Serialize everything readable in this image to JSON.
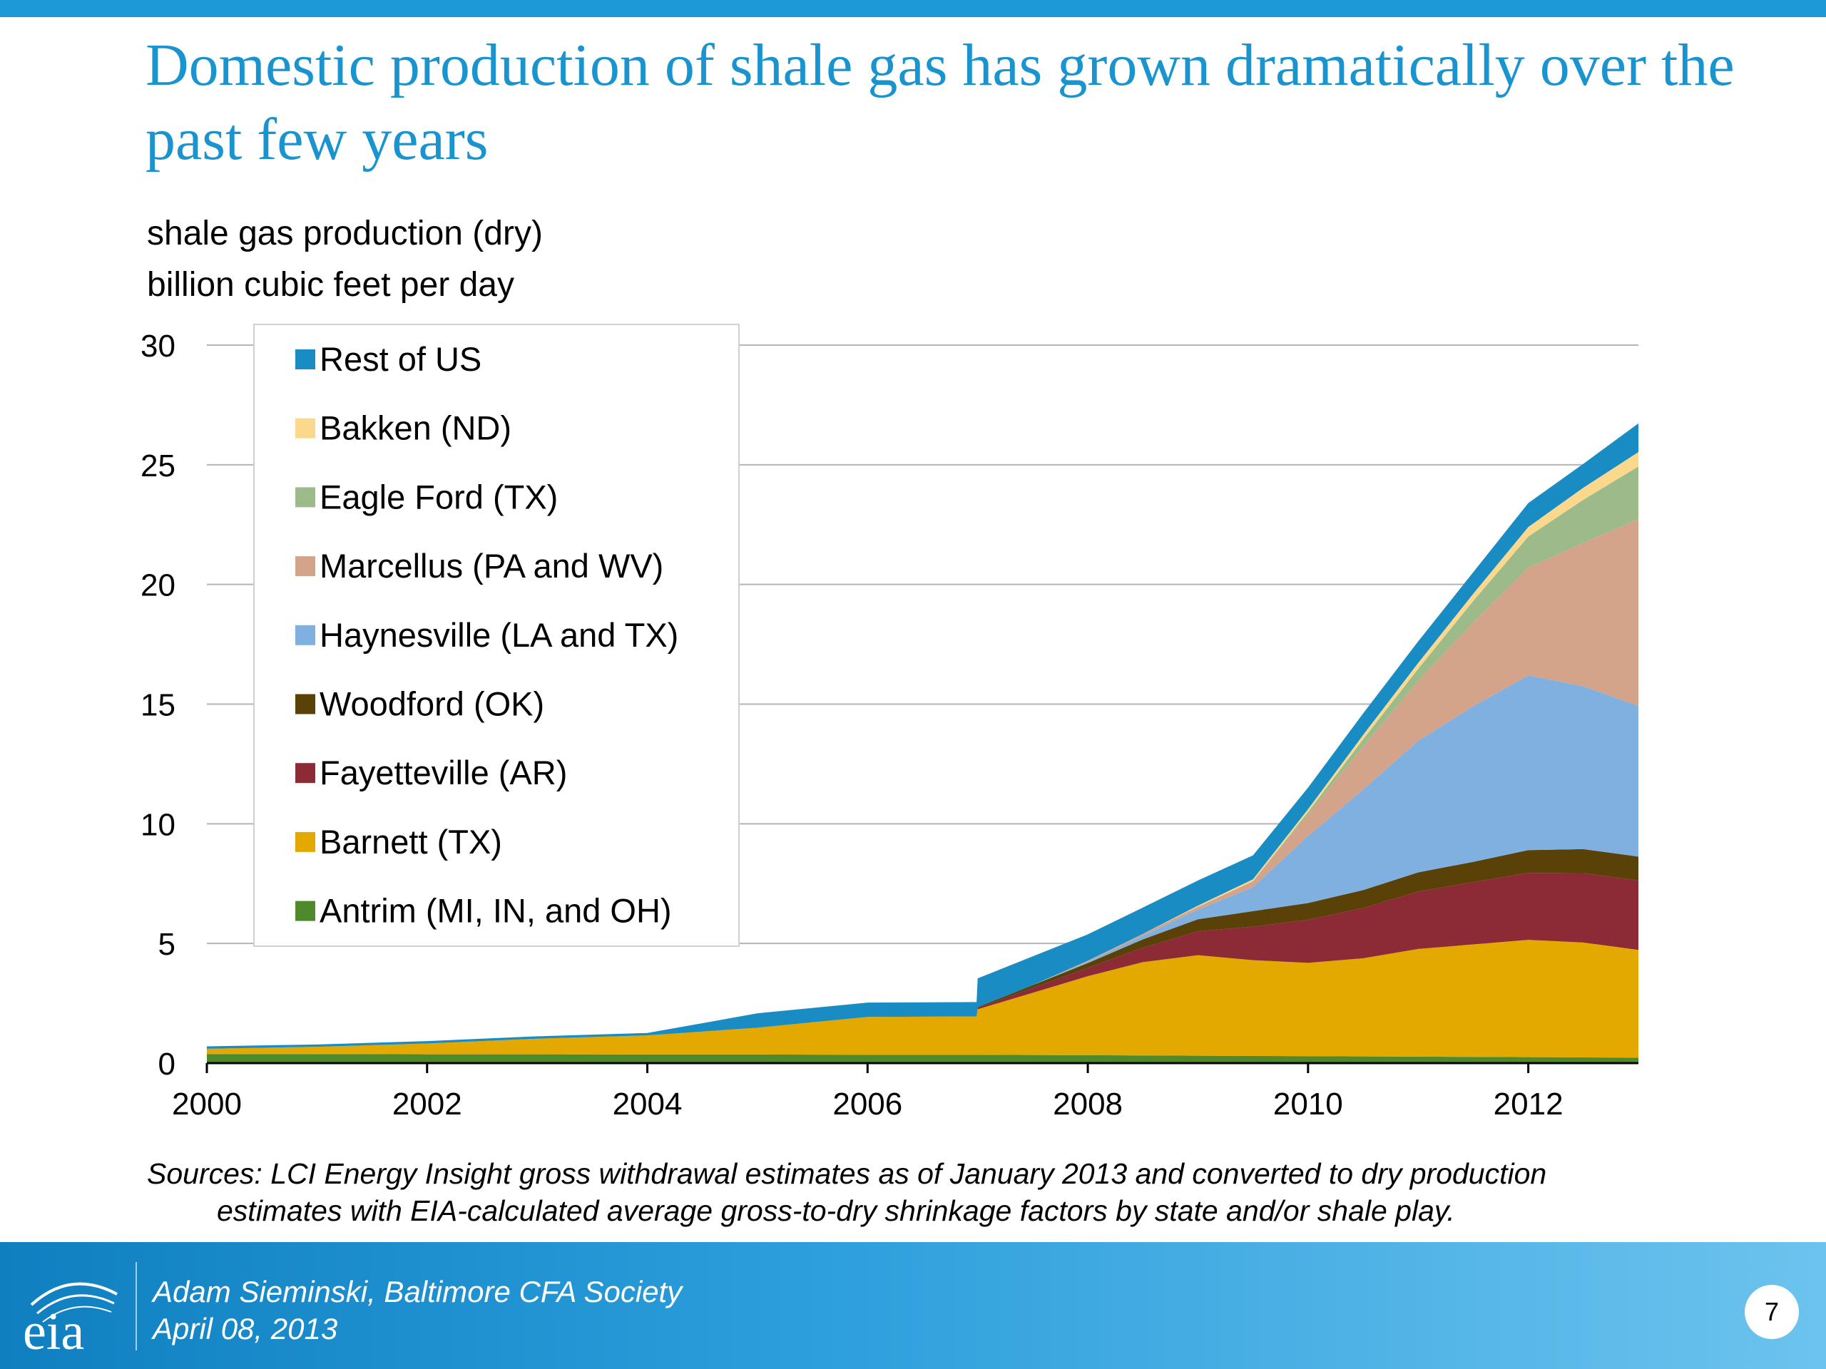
{
  "slide": {
    "title": "Domestic production of shale gas has grown dramatically over the past few years",
    "unit_line_1": "shale gas production (dry)",
    "unit_line_2": "billion cubic feet per day",
    "sources_line_1": "Sources:  LCI Energy Insight gross withdrawal estimates as of January 2013 and converted to dry production",
    "sources_line_2": "estimates with EIA-calculated average gross-to-dry shrinkage factors by state and/or shale play.",
    "footer_presenter": "Adam Sieminski, Baltimore CFA Society",
    "footer_date": "April 08, 2013",
    "page_number": "7",
    "logo_text": "eia"
  },
  "colors": {
    "accent": "#1d9ad6",
    "title": "#1a94cf",
    "gridline": "#b5b5b5"
  },
  "chart_data": {
    "type": "area",
    "stacked": true,
    "xlim": [
      2000,
      2013
    ],
    "ylim": [
      0,
      30
    ],
    "x_ticks": [
      "2000",
      "2002",
      "2004",
      "2006",
      "2008",
      "2010",
      "2012"
    ],
    "y_ticks": [
      "0",
      "5",
      "10",
      "15",
      "20",
      "25",
      "30"
    ],
    "grid": true,
    "legend_position": "top-left",
    "x": [
      2000,
      2001,
      2002,
      2003,
      2004,
      2005,
      2006,
      2006.99,
      2007,
      2007.5,
      2008,
      2008.5,
      2009,
      2009.5,
      2010,
      2010.5,
      2011,
      2011.5,
      2012,
      2012.5,
      2013
    ],
    "series": [
      {
        "name": "Antrim (MI, IN, and OH)",
        "color": "#4e8a2c",
        "values": [
          0.38,
          0.38,
          0.37,
          0.37,
          0.36,
          0.36,
          0.35,
          0.35,
          0.35,
          0.34,
          0.33,
          0.32,
          0.31,
          0.3,
          0.29,
          0.28,
          0.27,
          0.26,
          0.25,
          0.24,
          0.23
        ]
      },
      {
        "name": "Barnett (TX)",
        "color": "#e3a900",
        "values": [
          0.22,
          0.3,
          0.45,
          0.65,
          0.8,
          1.12,
          1.58,
          1.6,
          1.9,
          2.6,
          3.3,
          3.9,
          4.2,
          4.0,
          3.9,
          4.1,
          4.5,
          4.7,
          4.9,
          4.8,
          4.5
        ]
      },
      {
        "name": "Fayetteville (AR)",
        "color": "#8c2a36",
        "values": [
          0,
          0,
          0,
          0,
          0,
          0,
          0,
          0,
          0.05,
          0.2,
          0.35,
          0.6,
          1.0,
          1.4,
          1.8,
          2.1,
          2.4,
          2.6,
          2.8,
          2.9,
          2.9
        ]
      },
      {
        "name": "Woodford (OK)",
        "color": "#5a4107",
        "values": [
          0,
          0,
          0,
          0,
          0,
          0,
          0,
          0,
          0.04,
          0.12,
          0.2,
          0.35,
          0.5,
          0.65,
          0.7,
          0.75,
          0.8,
          0.85,
          0.95,
          1.0,
          1.0
        ]
      },
      {
        "name": "Haynesville (LA and TX)",
        "color": "#7fb0df",
        "values": [
          0,
          0,
          0,
          0,
          0,
          0,
          0,
          0,
          0,
          0,
          0.05,
          0.15,
          0.4,
          1.0,
          2.8,
          4.2,
          5.5,
          6.5,
          7.3,
          6.8,
          6.3
        ]
      },
      {
        "name": "Marcellus (PA and WV)",
        "color": "#d4a48a",
        "values": [
          0,
          0,
          0,
          0,
          0,
          0,
          0,
          0,
          0,
          0,
          0.05,
          0.08,
          0.12,
          0.25,
          0.9,
          1.8,
          2.5,
          3.5,
          4.5,
          6.0,
          7.8
        ]
      },
      {
        "name": "Eagle Ford (TX)",
        "color": "#9dbb8a",
        "values": [
          0,
          0,
          0,
          0,
          0,
          0,
          0,
          0,
          0,
          0,
          0,
          0,
          0,
          0,
          0.1,
          0.3,
          0.5,
          0.9,
          1.3,
          1.8,
          2.2
        ]
      },
      {
        "name": "Bakken (ND)",
        "color": "#fbd88c",
        "values": [
          0,
          0,
          0,
          0,
          0,
          0,
          0,
          0,
          0,
          0,
          0,
          0,
          0.05,
          0.08,
          0.12,
          0.18,
          0.25,
          0.3,
          0.4,
          0.5,
          0.6
        ]
      },
      {
        "name": "Rest of US",
        "color": "#1a8cc4",
        "values": [
          0.1,
          0.1,
          0.1,
          0.1,
          0.1,
          0.6,
          0.6,
          0.6,
          1.2,
          1.2,
          1.1,
          1.1,
          1.05,
          1.0,
          0.9,
          0.9,
          0.9,
          0.9,
          1.0,
          1.0,
          1.2
        ]
      }
    ]
  }
}
